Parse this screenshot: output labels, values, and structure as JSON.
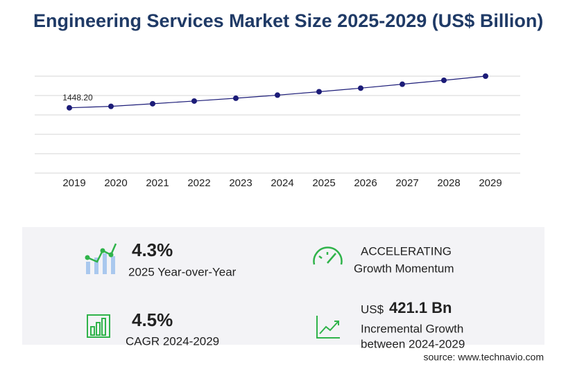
{
  "chart_data": {
    "type": "line",
    "title": "Engineering Services Market Size 2025-2029 (US$ Billion)",
    "categories": [
      "2019",
      "2020",
      "2021",
      "2022",
      "2023",
      "2024",
      "2025",
      "2026",
      "2027",
      "2028",
      "2029"
    ],
    "values": [
      1448.2,
      1480,
      1538,
      1598,
      1660,
      1729,
      1805,
      1884,
      1971,
      2058,
      2150
    ],
    "value_labels": [
      "1448.20",
      null,
      null,
      null,
      null,
      null,
      null,
      null,
      null,
      null,
      null
    ],
    "color": "#1c1c78",
    "ylim": [
      0,
      2150
    ]
  },
  "stats": [
    {
      "value": "4.3%",
      "label": "2025 Year-over-Year"
    },
    {
      "value": "ACCELERATING",
      "label": "Growth Momentum"
    },
    {
      "value": "4.5%",
      "label": "CAGR 2024-2029"
    },
    {
      "prefix": "US$",
      "value": "421.1 Bn",
      "label": "Incremental Growth",
      "label2": "between 2024-2029"
    }
  ],
  "source": "source: www.technavio.com"
}
